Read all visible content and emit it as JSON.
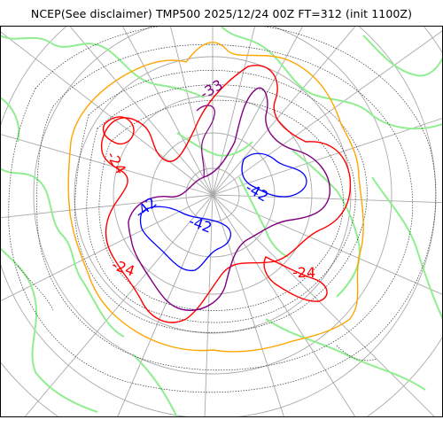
{
  "title": "NCEP(See disclaimer) TMP500 2025/12/24 00Z FT=312 (init 1100Z)",
  "colors": {
    "coastline": "#90ee90",
    "grid": "#a9a9a9",
    "contour_dotted": "#333333",
    "orange": "#ffa500",
    "red": "#ff0000",
    "purple": "#800080",
    "blue": "#0000ff",
    "frame": "#000000"
  },
  "labels": {
    "red_label_1": "-24",
    "red_label_2": "-24",
    "red_label_3": "-24",
    "purple_label": "-33",
    "blue_label_1": "-42",
    "blue_label_2": "-42",
    "blue_label_3": "-42"
  }
}
